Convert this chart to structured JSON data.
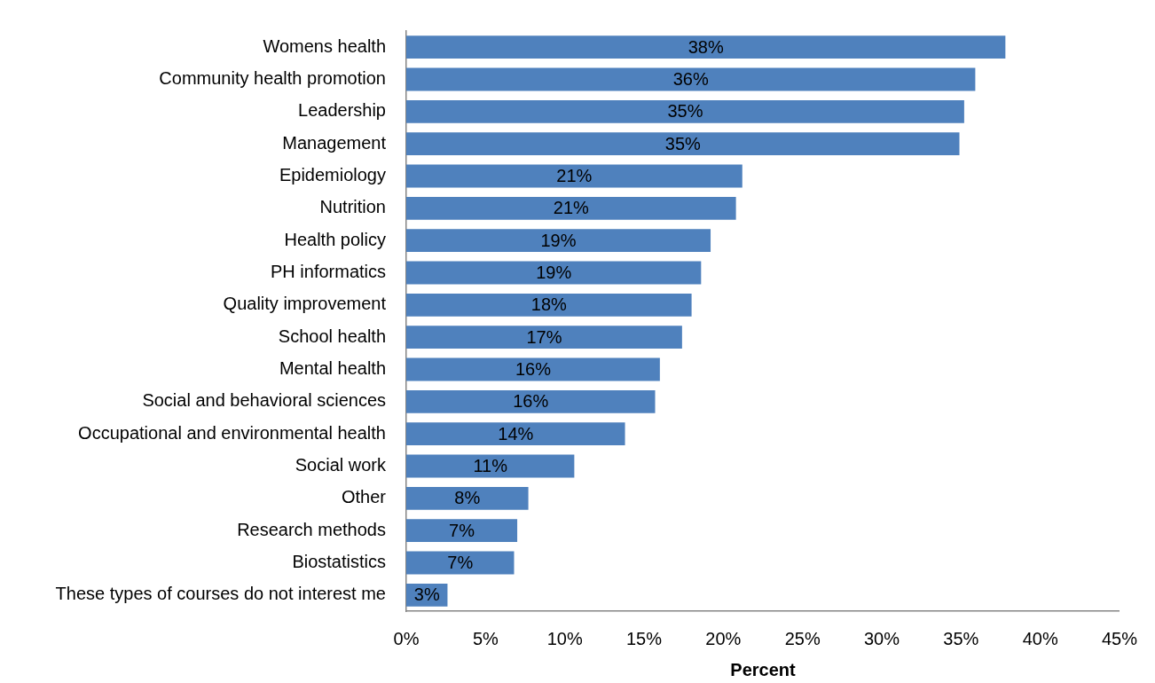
{
  "chart_data": {
    "type": "bar",
    "orientation": "horizontal",
    "xlabel": "Percent",
    "categories": [
      "Womens health",
      "Community health promotion",
      "Leadership",
      "Management",
      "Epidemiology",
      "Nutrition",
      "Health policy",
      "PH informatics",
      "Quality improvement",
      "School health",
      "Mental health",
      "Social and behavioral sciences",
      "Occupational and environmental health",
      "Social work",
      "Other",
      "Research methods",
      "Biostatistics",
      "These types of courses do not interest me"
    ],
    "values": [
      37.8,
      35.9,
      35.2,
      34.9,
      21.2,
      20.8,
      19.2,
      18.6,
      18.0,
      17.4,
      16.0,
      15.7,
      13.8,
      10.6,
      7.7,
      7.0,
      6.8,
      2.6
    ],
    "value_labels": [
      "38%",
      "36%",
      "35%",
      "35%",
      "21%",
      "21%",
      "19%",
      "19%",
      "18%",
      "17%",
      "16%",
      "16%",
      "14%",
      "11%",
      "8%",
      "7%",
      "7%",
      "3%"
    ],
    "color": "#4f81bd",
    "xlim": [
      0,
      45
    ],
    "xticks": [
      {
        "value": 0,
        "label": "0%"
      },
      {
        "value": 5,
        "label": "5%"
      },
      {
        "value": 10,
        "label": "10%"
      },
      {
        "value": 15,
        "label": "15%"
      },
      {
        "value": 20,
        "label": "20%"
      },
      {
        "value": 25,
        "label": "25%"
      },
      {
        "value": 30,
        "label": "30%"
      },
      {
        "value": 35,
        "label": "35%"
      },
      {
        "value": 40,
        "label": "40%"
      },
      {
        "value": 45,
        "label": "45%"
      }
    ]
  }
}
